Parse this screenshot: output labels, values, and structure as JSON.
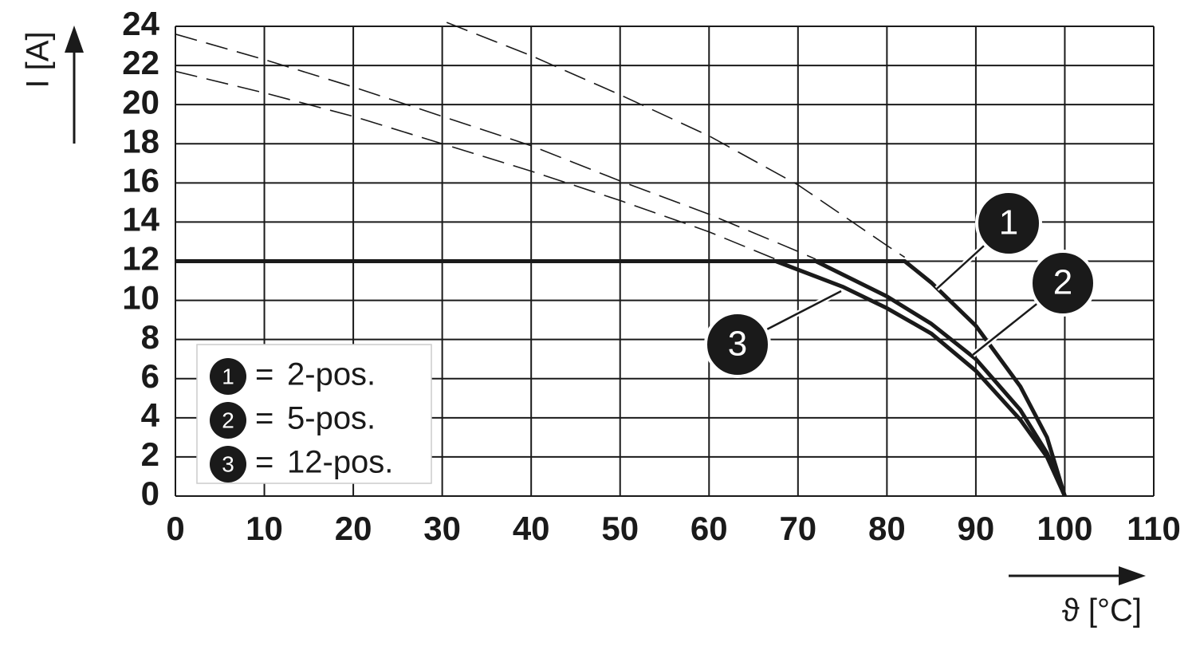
{
  "chart_data": {
    "type": "line",
    "x_label": "ϑ [°C]",
    "y_label": "I [A]",
    "xlim": [
      0,
      110
    ],
    "xticks": [
      0,
      10,
      20,
      30,
      40,
      50,
      60,
      70,
      80,
      90,
      100,
      110
    ],
    "ylim": [
      0,
      24
    ],
    "yticks": [
      0,
      2,
      4,
      6,
      8,
      10,
      12,
      14,
      16,
      18,
      20,
      22,
      24
    ],
    "grid": true,
    "legend_separator": "=",
    "series": [
      {
        "name": "2-pos.",
        "marker": "1",
        "color": "#1a1a1a",
        "x": [
          0,
          82,
          85,
          90,
          95,
          98,
          100
        ],
        "values": [
          12,
          12,
          10.9,
          8.7,
          5.6,
          3,
          0
        ],
        "dashed_x": [
          30.5,
          40,
          50,
          60,
          70,
          80,
          82
        ],
        "dashed_values": [
          24.2,
          22.5,
          20.5,
          18.4,
          15.9,
          12.8,
          12.2
        ]
      },
      {
        "name": "5-pos.",
        "marker": "2",
        "color": "#1a1a1a",
        "x": [
          0,
          72,
          80,
          85,
          90,
          95,
          98,
          100
        ],
        "values": [
          12,
          12,
          10.2,
          8.8,
          7,
          4.4,
          2.2,
          0
        ],
        "dashed_x": [
          0,
          10,
          20,
          30,
          40,
          50,
          60,
          70,
          72
        ],
        "dashed_values": [
          23.6,
          22.3,
          20.9,
          19.4,
          17.9,
          16.1,
          14.4,
          12.5,
          12.1
        ]
      },
      {
        "name": "12-pos.",
        "marker": "3",
        "color": "#1a1a1a",
        "x": [
          0,
          67.5,
          75,
          80,
          85,
          90,
          95,
          98,
          100
        ],
        "values": [
          12,
          12,
          10.7,
          9.6,
          8.3,
          6.4,
          3.9,
          2,
          0
        ],
        "dashed_x": [
          0,
          10,
          20,
          30,
          40,
          50,
          60,
          67.5
        ],
        "dashed_values": [
          21.7,
          20.6,
          19.4,
          18,
          16.6,
          15.1,
          13.5,
          12.1
        ]
      }
    ]
  }
}
